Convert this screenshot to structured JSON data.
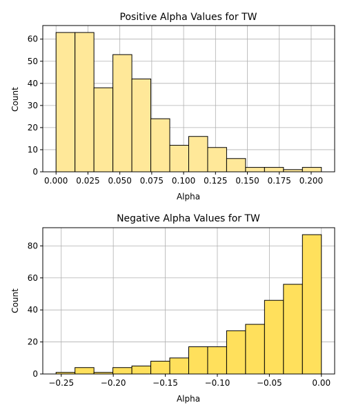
{
  "chart_data": [
    {
      "type": "bar",
      "title": "Positive Alpha Values for TW",
      "xlabel": "Alpha",
      "ylabel": "Count",
      "bin_edges": [
        0.0,
        0.01486,
        0.02971,
        0.04457,
        0.05943,
        0.07429,
        0.08914,
        0.104,
        0.11886,
        0.13371,
        0.14857,
        0.16343,
        0.17829,
        0.19314,
        0.208
      ],
      "values": [
        63,
        63,
        38,
        53,
        42,
        24,
        12,
        16,
        11,
        6,
        2,
        2,
        1,
        2
      ],
      "xlim": [
        -0.0104,
        0.2184
      ],
      "ylim": [
        0,
        66.15
      ],
      "xticks": [
        0.0,
        0.025,
        0.05,
        0.075,
        0.1,
        0.125,
        0.15,
        0.175,
        0.2
      ],
      "xtick_labels": [
        "0.000",
        "0.025",
        "0.050",
        "0.075",
        "0.100",
        "0.125",
        "0.150",
        "0.175",
        "0.200"
      ],
      "yticks": [
        0,
        10,
        20,
        30,
        40,
        50,
        60
      ],
      "ytick_labels": [
        "0",
        "10",
        "20",
        "30",
        "40",
        "50",
        "60"
      ],
      "grid": true,
      "bar_color": "#FFE899",
      "edge_color": "#000000"
    },
    {
      "type": "bar",
      "title": "Negative Alpha Values for TW",
      "xlabel": "Alpha",
      "ylabel": "Count",
      "bin_edges": [
        -0.255,
        -0.23679,
        -0.21857,
        -0.20036,
        -0.18214,
        -0.16393,
        -0.14571,
        -0.1275,
        -0.10929,
        -0.09107,
        -0.07286,
        -0.05464,
        -0.03643,
        -0.01821,
        0.0
      ],
      "values": [
        1,
        4,
        1,
        4,
        5,
        8,
        10,
        17,
        17,
        27,
        31,
        46,
        56,
        87
      ],
      "xlim": [
        -0.26775,
        0.01275
      ],
      "ylim": [
        0,
        91.35
      ],
      "xticks": [
        -0.25,
        -0.2,
        -0.15,
        -0.1,
        -0.05,
        0.0
      ],
      "xtick_labels": [
        "−0.25",
        "−0.20",
        "−0.15",
        "−0.10",
        "−0.05",
        "0.00"
      ],
      "yticks": [
        0,
        20,
        40,
        60,
        80
      ],
      "ytick_labels": [
        "0",
        "20",
        "40",
        "60",
        "80"
      ],
      "grid": true,
      "bar_color": "#FFE05C",
      "edge_color": "#000000"
    }
  ]
}
